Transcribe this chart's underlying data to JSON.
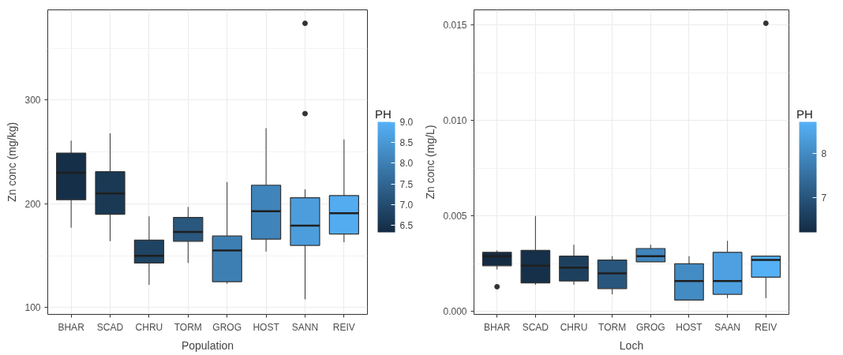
{
  "chart_data": [
    {
      "type": "box",
      "xlabel": "Population",
      "ylabel": "Zn conc (mg/kg)",
      "categories": [
        "BHAR",
        "SCAD",
        "CHRU",
        "TORM",
        "GROG",
        "HOST",
        "SANN",
        "REIV"
      ],
      "ylim": [
        93.5,
        387
      ],
      "yticks": [
        100,
        200,
        300
      ],
      "grid": true,
      "clabel": "PH",
      "clim": [
        6.33,
        9.0
      ],
      "cticks": [
        {
          "value": 6.5,
          "label": "6.5"
        },
        {
          "value": 7,
          "label": "7.0"
        },
        {
          "value": 7.5,
          "label": "7.5"
        },
        {
          "value": 8,
          "label": "8.0"
        },
        {
          "value": 8.5,
          "label": "8.5"
        },
        {
          "value": 9,
          "label": "9.0"
        }
      ],
      "cvalues": [
        6.4,
        6.6,
        6.8,
        7.2,
        8.0,
        8.1,
        8.6,
        8.9
      ],
      "boxes": [
        {
          "low": 177,
          "q1": 204,
          "median": 230,
          "q3": 249,
          "high": 261
        },
        {
          "low": 164,
          "q1": 190,
          "median": 210,
          "q3": 231,
          "high": 268
        },
        {
          "low": 122,
          "q1": 143,
          "median": 150,
          "q3": 165,
          "high": 188
        },
        {
          "low": 143,
          "q1": 164,
          "median": 173,
          "q3": 187,
          "high": 197
        },
        {
          "low": 123,
          "q1": 125,
          "median": 155,
          "q3": 169,
          "high": 221
        },
        {
          "low": 154,
          "q1": 166,
          "median": 193,
          "q3": 218,
          "high": 273
        },
        {
          "low": 108,
          "q1": 160,
          "median": 179,
          "q3": 206,
          "high": 214,
          "outliers": [
            374,
            287
          ]
        },
        {
          "low": 163,
          "q1": 171,
          "median": 191,
          "q3": 208,
          "high": 262
        }
      ]
    },
    {
      "type": "box",
      "xlabel": "Loch",
      "ylabel": "Zn conc (mg/L)",
      "categories": [
        "BHAR",
        "SCAD",
        "CHRU",
        "TORM",
        "GROG",
        "HOST",
        "SAAN",
        "REIV"
      ],
      "ylim": [
        -0.00015,
        0.0158
      ],
      "yticks": [
        {
          "value": 0,
          "label": "0.000"
        },
        {
          "value": 0.005,
          "label": "0.005"
        },
        {
          "value": 0.01,
          "label": "0.010"
        },
        {
          "value": 0.015,
          "label": "0.015"
        }
      ],
      "grid": true,
      "clabel": "PH",
      "clim": [
        6.2,
        8.72
      ],
      "cticks": [
        7,
        8
      ],
      "cvalues": [
        6.2,
        6.3,
        6.6,
        7.0,
        7.9,
        8.0,
        8.4,
        8.7
      ],
      "boxes": [
        {
          "low": 0.0022,
          "q1": 0.0024,
          "median": 0.0029,
          "q3": 0.0031,
          "high": 0.0032,
          "outliers": [
            0.0013
          ]
        },
        {
          "low": 0.0014,
          "q1": 0.0015,
          "median": 0.0024,
          "q3": 0.0032,
          "high": 0.005
        },
        {
          "low": 0.0014,
          "q1": 0.0016,
          "median": 0.0023,
          "q3": 0.0029,
          "high": 0.0035
        },
        {
          "low": 0.0009,
          "q1": 0.0012,
          "median": 0.002,
          "q3": 0.0027,
          "high": 0.0029
        },
        {
          "low": 0.0026,
          "q1": 0.0026,
          "median": 0.0029,
          "q3": 0.0033,
          "high": 0.0035
        },
        {
          "low": 0.0006,
          "q1": 0.0006,
          "median": 0.0016,
          "q3": 0.0025,
          "high": 0.0029
        },
        {
          "low": 0.0007,
          "q1": 0.0009,
          "median": 0.0016,
          "q3": 0.0031,
          "high": 0.0037
        },
        {
          "low": 0.0007,
          "q1": 0.0018,
          "median": 0.0027,
          "q3": 0.0029,
          "high": 0.0029,
          "outliers": [
            0.0151
          ]
        }
      ]
    }
  ]
}
